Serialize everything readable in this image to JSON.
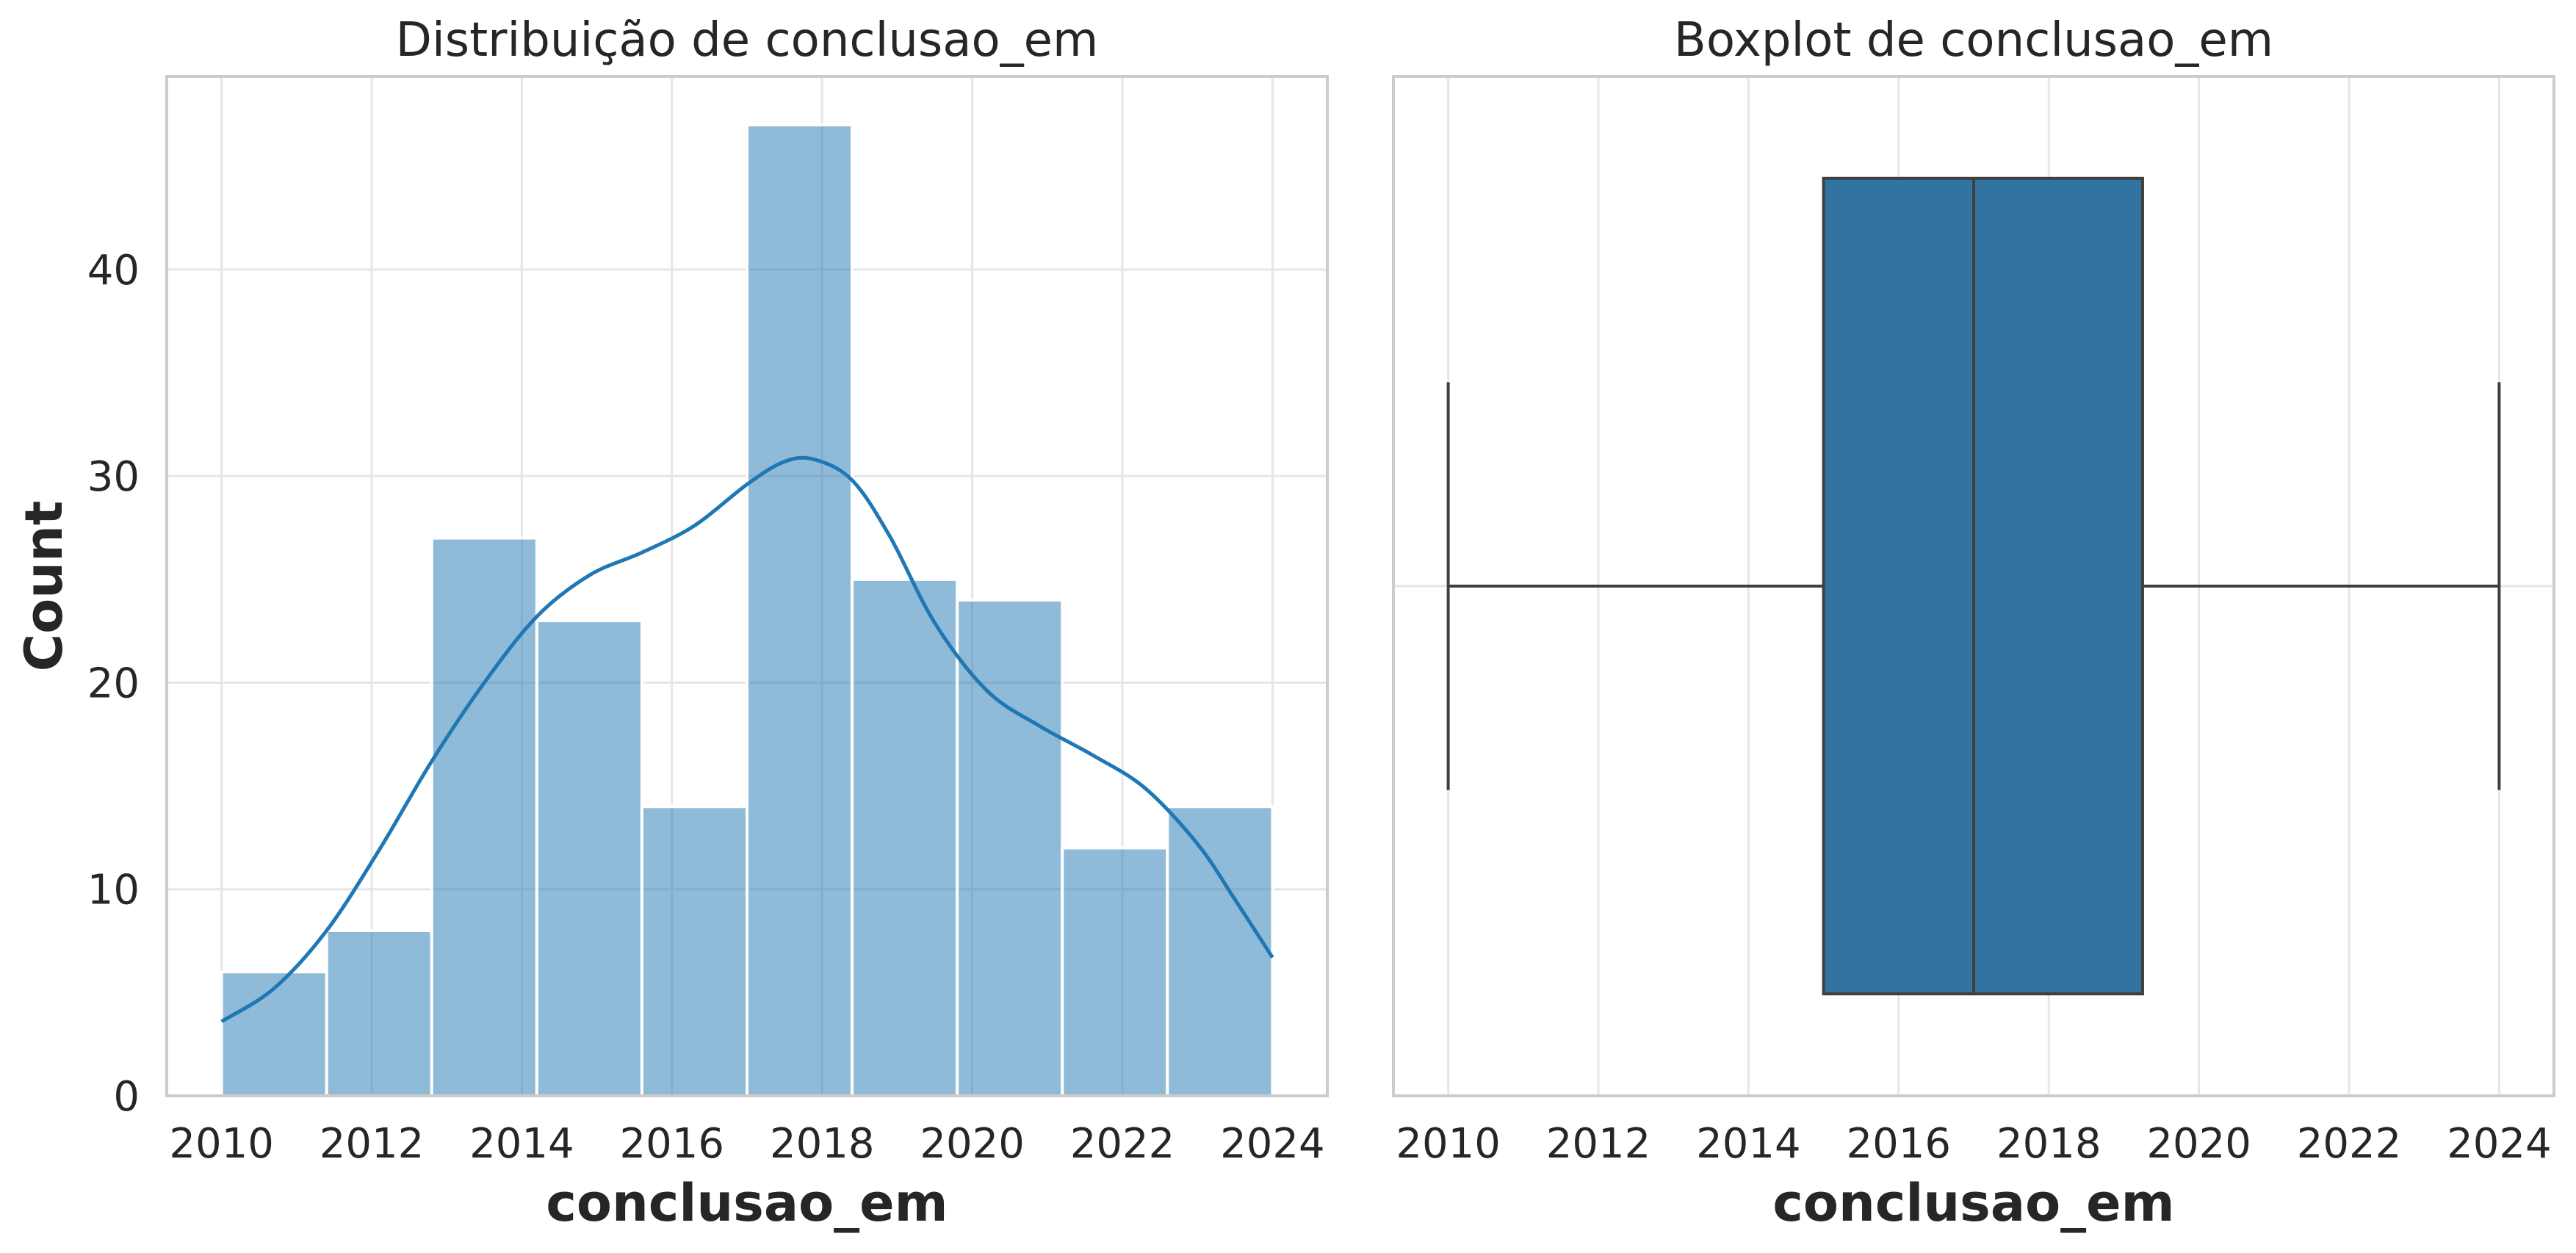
{
  "chart_data": [
    {
      "type": "bar",
      "title": "Distribuição de conclusao_em",
      "xlabel": "conclusao_em",
      "ylabel": "Count",
      "xlim": [
        2009.27,
        2024.73
      ],
      "ylim": [
        0,
        49.35
      ],
      "xticks": [
        "2010",
        "2012",
        "2014",
        "2016",
        "2018",
        "2020",
        "2022",
        "2024"
      ],
      "yticks": [
        "0",
        "10",
        "20",
        "30",
        "40"
      ],
      "grid": true,
      "bin_edges": [
        2010,
        2011.4,
        2012.8,
        2014.2,
        2015.6,
        2017,
        2018.4,
        2019.8,
        2021.2,
        2022.6,
        2024
      ],
      "values": [
        6,
        8,
        27,
        23,
        14,
        47,
        25,
        24,
        12,
        14
      ],
      "bar_color": "#1f77b4",
      "kde": {
        "x": [
          2010,
          2010.7,
          2011.4,
          2012.1,
          2012.8,
          2013.5,
          2014.2,
          2014.9,
          2015.6,
          2016.3,
          2017,
          2017.5,
          2017.9,
          2018.4,
          2018.9,
          2019.5,
          2020.2,
          2020.9,
          2021.6,
          2022.3,
          2023,
          2023.5,
          2024
        ],
        "y": [
          3.6,
          5.2,
          8.0,
          11.9,
          16.2,
          20.0,
          23.2,
          25.2,
          26.3,
          27.6,
          29.6,
          30.7,
          30.8,
          29.8,
          27.1,
          22.9,
          19.6,
          17.9,
          16.5,
          14.9,
          12.2,
          9.5,
          6.7
        ]
      }
    },
    {
      "type": "box",
      "title": "Boxplot de conclusao_em",
      "xlabel": "conclusao_em",
      "xlim": [
        2009.27,
        2024.73
      ],
      "xticks": [
        "2010",
        "2012",
        "2014",
        "2016",
        "2018",
        "2020",
        "2022",
        "2024"
      ],
      "grid": true,
      "whisker_low": 2010,
      "q1": 2015,
      "median": 2017,
      "q3": 2019.25,
      "whisker_high": 2024,
      "box_color": "#3274a1"
    }
  ]
}
